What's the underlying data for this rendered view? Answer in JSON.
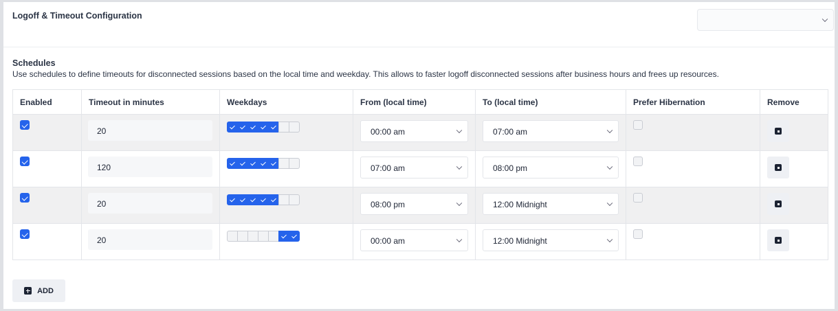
{
  "header": {
    "title": "Logoff & Timeout Configuration",
    "dropdown_value": ""
  },
  "schedules": {
    "title": "Schedules",
    "description": "Use schedules to define timeouts for disconnected sessions based on the local time and weekday. This allows to faster logoff disconnected sessions after business hours and frees up resources.",
    "columns": [
      "Enabled",
      "Timeout in minutes",
      "Weekdays",
      "From (local time)",
      "To (local time)",
      "Prefer Hibernation",
      "Remove"
    ],
    "rows": [
      {
        "enabled": true,
        "timeout": "20",
        "weekdays": [
          true,
          true,
          true,
          true,
          true,
          false,
          false
        ],
        "from": "00:00 am",
        "to": "07:00 am",
        "prefer_hibernation": false
      },
      {
        "enabled": true,
        "timeout": "120",
        "weekdays": [
          true,
          true,
          true,
          true,
          true,
          false,
          false
        ],
        "from": "07:00 am",
        "to": "08:00 pm",
        "prefer_hibernation": false
      },
      {
        "enabled": true,
        "timeout": "20",
        "weekdays": [
          true,
          true,
          true,
          true,
          true,
          false,
          false
        ],
        "from": "08:00 pm",
        "to": "12:00 Midnight",
        "prefer_hibernation": false
      },
      {
        "enabled": true,
        "timeout": "20",
        "weekdays": [
          false,
          false,
          false,
          false,
          false,
          true,
          true
        ],
        "from": "00:00 am",
        "to": "12:00 Midnight",
        "prefer_hibernation": false
      }
    ],
    "add_label": "ADD"
  },
  "colors": {
    "accent": "#2563eb"
  }
}
